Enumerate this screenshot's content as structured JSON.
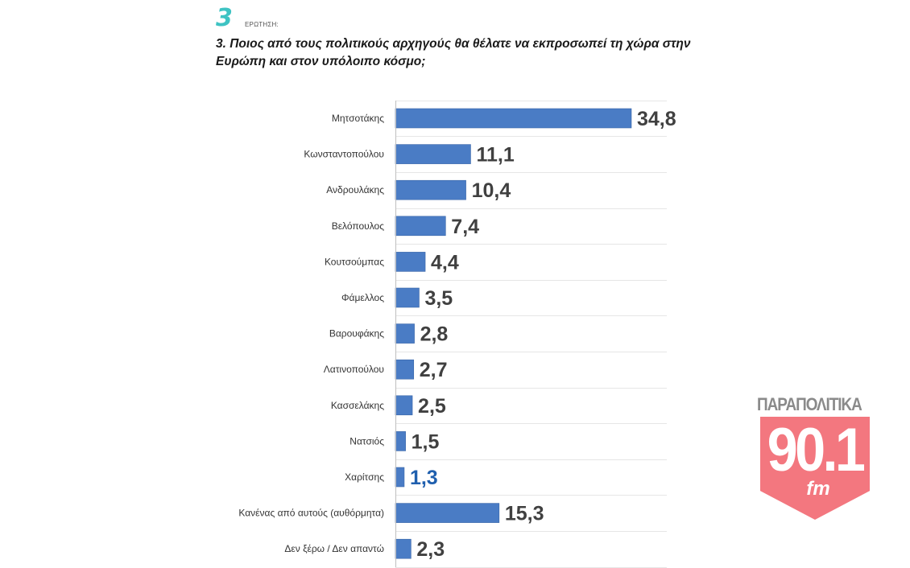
{
  "header": {
    "question_number": "3",
    "question_word": "ΕΡΩΤΗΣΗ:",
    "question_line1": "3. Ποιος από τους πολιτικούς αρχηγούς θα θέλατε να εκπροσωπεί τη χώρα στην",
    "question_line2": "Ευρώπη και στον υπόλοιπο κόσμο;"
  },
  "chart_data": {
    "type": "bar",
    "orientation": "horizontal",
    "categories": [
      "Μητσοτάκης",
      "Κωνσταντοπούλου",
      "Ανδρουλάκης",
      "Βελόπουλος",
      "Κουτσούμπας",
      "Φάμελλος",
      "Βαρουφάκης",
      "Λατινοπούλου",
      "Κασσελάκης",
      "Νατσιός",
      "Χαρίτσης",
      "Κανένας από αυτούς (αυθόρμητα)",
      "Δεν ξέρω / Δεν απαντώ"
    ],
    "values": [
      34.8,
      11.1,
      10.4,
      7.4,
      4.4,
      3.5,
      2.8,
      2.7,
      2.5,
      1.5,
      1.3,
      15.3,
      2.3
    ],
    "value_labels": [
      "34,8",
      "11,1",
      "10,4",
      "7,4",
      "4,4",
      "3,5",
      "2,8",
      "2,7",
      "2,5",
      "1,5",
      "1,3",
      "15,3",
      "2,3"
    ],
    "highlight_index": 10,
    "bar_color": "#4a7cc5",
    "label_color": "#404040",
    "highlight_label_color": "#1f5fae",
    "grid": true,
    "legend": false
  },
  "logo": {
    "top_text": "ΠΑΡΑΠΟΛΙΤΙΚΑ",
    "frequency": "90.1",
    "band": "fm",
    "color": "#f3777f"
  }
}
